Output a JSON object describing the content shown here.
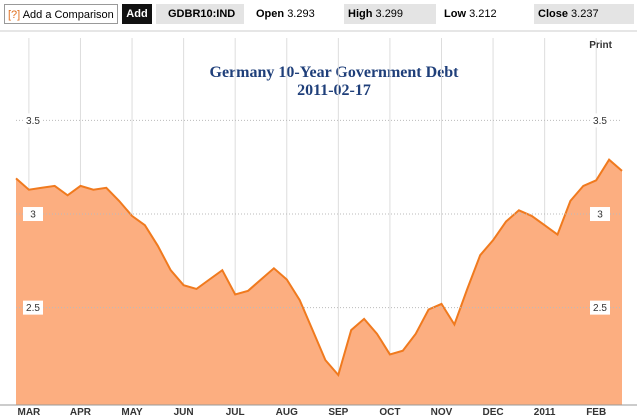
{
  "toolbar": {
    "help": "[?]",
    "comparison_placeholder": "Add a Comparison",
    "add_button": "Add",
    "ticker": "GDBR10:IND",
    "open_label": "Open",
    "open": 3.293,
    "high_label": "High",
    "high": 3.299,
    "low_label": "Low",
    "low": 3.212,
    "close_label": "Close",
    "close": 3.237,
    "print": "Print"
  },
  "chart_data": {
    "type": "area",
    "title": "Germany 10-Year Government Debt",
    "subtitle": "2011-02-17",
    "categories": [
      null,
      "MAR",
      null,
      null,
      null,
      "APR",
      null,
      null,
      null,
      "MAY",
      null,
      null,
      null,
      "JUN",
      null,
      null,
      null,
      "JUL",
      null,
      null,
      null,
      "AUG",
      null,
      null,
      null,
      "SEP",
      null,
      null,
      null,
      "OCT",
      null,
      null,
      null,
      "NOV",
      null,
      null,
      null,
      "DEC",
      null,
      null,
      null,
      "2011",
      null,
      null,
      null,
      "FEB",
      null,
      null
    ],
    "values": [
      3.19,
      3.13,
      3.14,
      3.15,
      3.1,
      3.15,
      3.13,
      3.14,
      3.07,
      2.99,
      2.94,
      2.83,
      2.7,
      2.62,
      2.6,
      2.65,
      2.7,
      2.57,
      2.59,
      2.65,
      2.71,
      2.65,
      2.54,
      2.38,
      2.22,
      2.14,
      2.38,
      2.44,
      2.36,
      2.25,
      2.27,
      2.36,
      2.49,
      2.52,
      2.41,
      2.6,
      2.78,
      2.86,
      2.96,
      3.02,
      2.99,
      2.94,
      2.89,
      3.07,
      3.15,
      3.18,
      3.29,
      3.23
    ],
    "color": "#f07a1e",
    "fill": "#fcae80",
    "ylim": [
      1.98,
      3.94
    ],
    "yticks": [
      2.5,
      3,
      3.5
    ],
    "grid": true
  }
}
